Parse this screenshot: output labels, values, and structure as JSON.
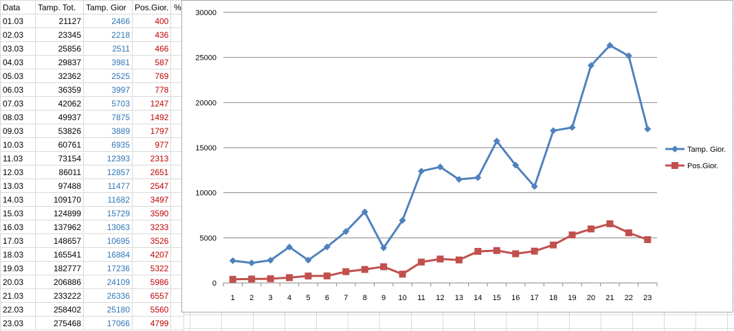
{
  "table": {
    "headers": [
      "Data",
      "Tamp. Tot.",
      "Tamp. Gior",
      "Pos.Gior.",
      "%"
    ],
    "rows": [
      [
        "01.03",
        "21127",
        "2466",
        "400"
      ],
      [
        "02.03",
        "23345",
        "2218",
        "436"
      ],
      [
        "03.03",
        "25856",
        "2511",
        "466"
      ],
      [
        "04.03",
        "29837",
        "3981",
        "587"
      ],
      [
        "05.03",
        "32362",
        "2525",
        "769"
      ],
      [
        "06.03",
        "36359",
        "3997",
        "778"
      ],
      [
        "07.03",
        "42062",
        "5703",
        "1247"
      ],
      [
        "08.03",
        "49937",
        "7875",
        "1492"
      ],
      [
        "09.03",
        "53826",
        "3889",
        "1797"
      ],
      [
        "10.03",
        "60761",
        "6935",
        "977"
      ],
      [
        "11.03",
        "73154",
        "12393",
        "2313"
      ],
      [
        "12.03",
        "86011",
        "12857",
        "2651"
      ],
      [
        "13.03",
        "97488",
        "11477",
        "2547"
      ],
      [
        "14.03",
        "109170",
        "11682",
        "3497"
      ],
      [
        "15.03",
        "124899",
        "15729",
        "3590"
      ],
      [
        "16.03",
        "137962",
        "13063",
        "3233"
      ],
      [
        "17.03",
        "148657",
        "10695",
        "3526"
      ],
      [
        "18.03",
        "165541",
        "16884",
        "4207"
      ],
      [
        "19.03",
        "182777",
        "17236",
        "5322"
      ],
      [
        "20.03",
        "206886",
        "24109",
        "5986"
      ],
      [
        "21.03",
        "233222",
        "26336",
        "6557"
      ],
      [
        "22.03",
        "258402",
        "25180",
        "5560"
      ],
      [
        "23.03",
        "275468",
        "17066",
        "4799"
      ]
    ]
  },
  "chart_data": {
    "type": "line",
    "x": [
      "1",
      "2",
      "3",
      "4",
      "5",
      "6",
      "7",
      "8",
      "9",
      "10",
      "11",
      "12",
      "13",
      "14",
      "15",
      "16",
      "17",
      "18",
      "19",
      "20",
      "21",
      "22",
      "23"
    ],
    "series": [
      {
        "name": "Tamp. Gior.",
        "color": "#4f81bd",
        "marker": "diamond",
        "values": [
          2466,
          2218,
          2511,
          3981,
          2525,
          3997,
          5703,
          7875,
          3889,
          6935,
          12393,
          12857,
          11477,
          11682,
          15729,
          13063,
          10695,
          16884,
          17236,
          24109,
          26336,
          25180,
          17066
        ]
      },
      {
        "name": "Pos.Gior.",
        "color": "#c0504d",
        "marker": "square",
        "values": [
          400,
          436,
          466,
          587,
          769,
          778,
          1247,
          1492,
          1797,
          977,
          2313,
          2651,
          2547,
          3497,
          3590,
          3233,
          3526,
          4207,
          5322,
          5986,
          6557,
          5560,
          4799
        ]
      }
    ],
    "yticks": [
      "0",
      "5000",
      "10000",
      "15000",
      "20000",
      "25000",
      "30000"
    ],
    "ylim": [
      0,
      30000
    ],
    "grid": true,
    "legend": "right"
  }
}
